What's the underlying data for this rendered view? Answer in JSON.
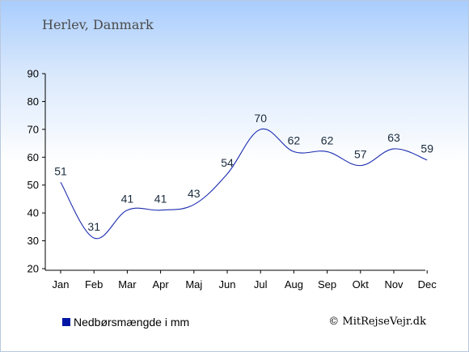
{
  "location": "Herlev, Danmark",
  "copyright": "© MitRejseVejr.dk",
  "legend": {
    "label": "Nedbørsmængde i mm",
    "color": "#0017a6"
  },
  "chart_data": {
    "type": "line",
    "title": "",
    "xlabel": "",
    "ylabel": "",
    "categories": [
      "Jan",
      "Feb",
      "Mar",
      "Apr",
      "Maj",
      "Jun",
      "Jul",
      "Aug",
      "Sep",
      "Okt",
      "Nov",
      "Dec"
    ],
    "series": [
      {
        "name": "Nedbørsmængde i mm",
        "values": [
          51,
          31,
          41,
          41,
          43,
          54,
          70,
          62,
          62,
          57,
          63,
          59
        ],
        "color": "#1a2bb0"
      }
    ],
    "ylim": [
      20,
      90
    ],
    "yticks": [
      20,
      30,
      40,
      50,
      60,
      70,
      80,
      90
    ],
    "grid": false,
    "legend_position": "bottom-left"
  }
}
